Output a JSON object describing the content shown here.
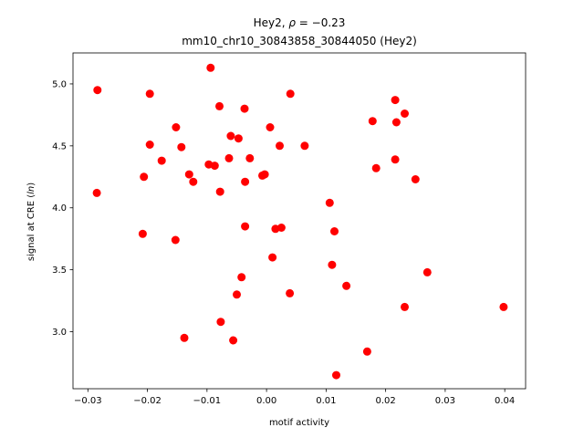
{
  "chart_data": {
    "type": "scatter",
    "title_line1_prefix": "Hey2, ",
    "title_rho_symbol": "ρ",
    "title_rho_value": " = −0.23",
    "title_line2": "mm10_chr10_30843858_30844050 (Hey2)",
    "xlabel": "motif activity",
    "ylabel_prefix": "signal at CRE (",
    "ylabel_italic": "ln",
    "ylabel_suffix": ")",
    "xlim": [
      -0.0325,
      0.0435
    ],
    "ylim": [
      2.54,
      5.25
    ],
    "xticks": [
      {
        "value": -0.03,
        "label": "−0.03"
      },
      {
        "value": -0.02,
        "label": "−0.02"
      },
      {
        "value": -0.01,
        "label": "−0.01"
      },
      {
        "value": 0.0,
        "label": "0.00"
      },
      {
        "value": 0.01,
        "label": "0.01"
      },
      {
        "value": 0.02,
        "label": "0.02"
      },
      {
        "value": 0.03,
        "label": "0.03"
      },
      {
        "value": 0.04,
        "label": "0.04"
      }
    ],
    "yticks": [
      {
        "value": 3.0,
        "label": "3.0"
      },
      {
        "value": 3.5,
        "label": "3.5"
      },
      {
        "value": 4.0,
        "label": "4.0"
      },
      {
        "value": 4.5,
        "label": "4.5"
      },
      {
        "value": 5.0,
        "label": "5.0"
      }
    ],
    "grid": false,
    "marker_color": "#ff0000",
    "points": [
      [
        -0.0284,
        4.95
      ],
      [
        -0.0285,
        4.12
      ],
      [
        -0.0196,
        4.92
      ],
      [
        -0.0196,
        4.51
      ],
      [
        -0.0206,
        4.25
      ],
      [
        -0.0208,
        3.79
      ],
      [
        -0.0176,
        4.38
      ],
      [
        -0.0152,
        4.65
      ],
      [
        -0.0143,
        4.49
      ],
      [
        -0.0153,
        3.74
      ],
      [
        -0.013,
        4.27
      ],
      [
        -0.0123,
        4.21
      ],
      [
        -0.0138,
        2.95
      ],
      [
        -0.0094,
        5.13
      ],
      [
        -0.0097,
        4.35
      ],
      [
        -0.0087,
        4.34
      ],
      [
        -0.0079,
        4.82
      ],
      [
        -0.0078,
        4.13
      ],
      [
        -0.006,
        4.58
      ],
      [
        -0.0047,
        4.56
      ],
      [
        -0.0063,
        4.4
      ],
      [
        -0.0037,
        4.8
      ],
      [
        -0.0028,
        4.4
      ],
      [
        -0.0036,
        4.21
      ],
      [
        -0.0036,
        3.85
      ],
      [
        -0.0042,
        3.44
      ],
      [
        -0.005,
        3.3
      ],
      [
        -0.0077,
        3.08
      ],
      [
        -0.0056,
        2.93
      ],
      [
        0.0006,
        4.65
      ],
      [
        0.0022,
        4.5
      ],
      [
        -0.0007,
        4.26
      ],
      [
        -0.0003,
        4.27
      ],
      [
        0.0015,
        3.83
      ],
      [
        0.0025,
        3.84
      ],
      [
        0.001,
        3.6
      ],
      [
        0.004,
        4.92
      ],
      [
        0.0064,
        4.5
      ],
      [
        0.0039,
        3.31
      ],
      [
        0.0106,
        4.04
      ],
      [
        0.0114,
        3.81
      ],
      [
        0.011,
        3.54
      ],
      [
        0.0134,
        3.37
      ],
      [
        0.0117,
        2.65
      ],
      [
        0.0178,
        4.7
      ],
      [
        0.0184,
        4.32
      ],
      [
        0.0216,
        4.87
      ],
      [
        0.0218,
        4.69
      ],
      [
        0.0232,
        4.76
      ],
      [
        0.0216,
        4.39
      ],
      [
        0.025,
        4.23
      ],
      [
        0.027,
        3.48
      ],
      [
        0.0232,
        3.2
      ],
      [
        0.0169,
        2.84
      ],
      [
        0.0398,
        3.2
      ]
    ]
  }
}
